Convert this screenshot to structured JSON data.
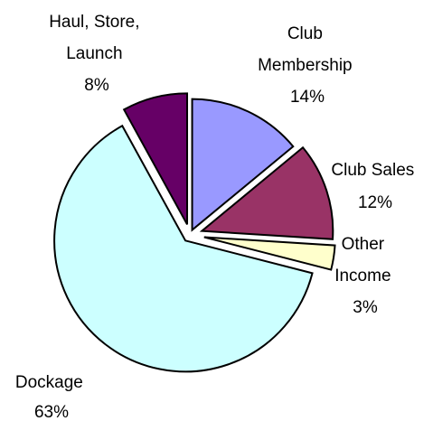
{
  "chart_data": {
    "type": "pie",
    "title": "",
    "slices": [
      {
        "label_lines": [
          "Club",
          "Membership"
        ],
        "value": 14,
        "value_label": "14%",
        "color": "#9999FF"
      },
      {
        "label_lines": [
          "Club Sales"
        ],
        "value": 12,
        "value_label": "12%",
        "color": "#993366"
      },
      {
        "label_lines": [
          "Other",
          "Income"
        ],
        "value": 3,
        "value_label": "3%",
        "color": "#FFFFCC"
      },
      {
        "label_lines": [
          "Dockage"
        ],
        "value": 63,
        "value_label": "63%",
        "color": "#CCFFFF"
      },
      {
        "label_lines": [
          "Haul, Store,",
          "Launch"
        ],
        "value": 8,
        "value_label": "8%",
        "color": "#660066"
      }
    ],
    "exploded": true,
    "legend": "none",
    "data_labels": "category name and percentage outside slices"
  }
}
